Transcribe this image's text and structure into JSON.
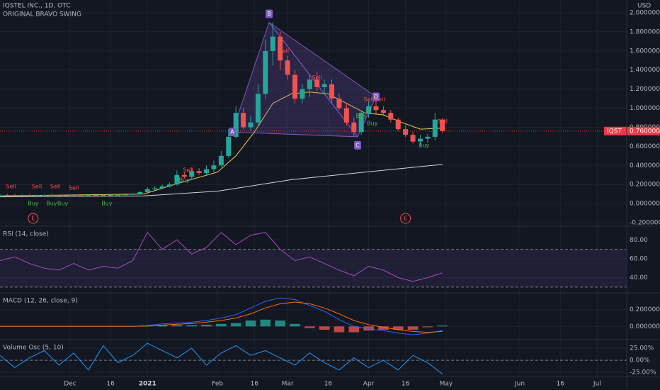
{
  "chart_data": [
    {
      "type": "candlestick",
      "title": "IQSTEL INC., 1D, OTC",
      "subtitle": "ORIGINAL BRAVO SWING",
      "currency": "USD",
      "x": [
        -19,
        -17,
        -15,
        -13,
        -11,
        -9,
        -7,
        -5,
        -3,
        -1,
        1,
        3,
        5,
        7,
        9,
        11,
        13,
        15,
        17,
        19,
        21,
        23,
        25,
        27,
        29,
        31,
        33,
        35,
        37,
        39,
        41,
        43,
        45,
        47,
        49,
        51,
        53,
        55,
        57,
        59,
        61,
        63,
        65,
        67,
        69,
        71,
        73,
        75,
        77,
        79,
        81,
        83,
        85,
        87,
        89,
        91,
        93,
        95,
        97,
        99,
        101
      ],
      "open": [
        0.08,
        0.085,
        0.09,
        0.085,
        0.09,
        0.085,
        0.088,
        0.09,
        0.085,
        0.088,
        0.085,
        0.09,
        0.085,
        0.088,
        0.09,
        0.088,
        0.09,
        0.092,
        0.095,
        0.1,
        0.12,
        0.15,
        0.16,
        0.18,
        0.2,
        0.3,
        0.28,
        0.34,
        0.32,
        0.36,
        0.4,
        0.5,
        0.7,
        0.95,
        0.8,
        0.85,
        1.15,
        1.6,
        1.75,
        1.5,
        1.35,
        1.1,
        1.2,
        1.3,
        1.22,
        1.25,
        1.1,
        1.0,
        0.85,
        0.75,
        0.95,
        1.02,
        0.98,
        0.95,
        0.88,
        0.78,
        0.72,
        0.65,
        0.68,
        0.7,
        0.88
      ],
      "high": [
        0.095,
        0.1,
        0.1,
        0.1,
        0.1,
        0.095,
        0.1,
        0.1,
        0.095,
        0.095,
        0.1,
        0.1,
        0.095,
        0.1,
        0.1,
        0.1,
        0.1,
        0.105,
        0.11,
        0.13,
        0.17,
        0.18,
        0.2,
        0.22,
        0.35,
        0.33,
        0.38,
        0.37,
        0.4,
        0.45,
        0.55,
        0.78,
        1.02,
        1.0,
        0.92,
        1.25,
        1.72,
        1.9,
        1.8,
        1.55,
        1.4,
        1.25,
        1.35,
        1.38,
        1.3,
        1.3,
        1.15,
        1.05,
        0.9,
        0.98,
        1.08,
        1.08,
        1.02,
        0.98,
        0.9,
        0.82,
        0.75,
        0.72,
        0.73,
        0.95,
        0.9
      ],
      "low": [
        0.075,
        0.08,
        0.08,
        0.08,
        0.08,
        0.08,
        0.08,
        0.08,
        0.08,
        0.08,
        0.08,
        0.08,
        0.08,
        0.08,
        0.085,
        0.085,
        0.085,
        0.088,
        0.09,
        0.095,
        0.115,
        0.14,
        0.15,
        0.17,
        0.19,
        0.26,
        0.26,
        0.3,
        0.3,
        0.33,
        0.38,
        0.48,
        0.68,
        0.78,
        0.76,
        0.82,
        1.1,
        1.45,
        1.4,
        1.3,
        1.05,
        1.05,
        1.12,
        1.18,
        1.15,
        1.05,
        0.98,
        0.82,
        0.7,
        0.72,
        0.9,
        0.94,
        0.92,
        0.85,
        0.76,
        0.7,
        0.63,
        0.6,
        0.64,
        0.66,
        0.74
      ],
      "close": [
        0.085,
        0.09,
        0.085,
        0.09,
        0.085,
        0.088,
        0.09,
        0.085,
        0.088,
        0.085,
        0.09,
        0.085,
        0.088,
        0.09,
        0.088,
        0.09,
        0.092,
        0.095,
        0.1,
        0.12,
        0.15,
        0.16,
        0.18,
        0.2,
        0.3,
        0.28,
        0.34,
        0.32,
        0.36,
        0.4,
        0.5,
        0.7,
        0.95,
        0.8,
        0.85,
        1.15,
        1.6,
        1.75,
        1.5,
        1.35,
        1.1,
        1.2,
        1.3,
        1.22,
        1.25,
        1.1,
        1.0,
        0.85,
        0.75,
        0.95,
        1.02,
        0.98,
        0.95,
        0.88,
        0.78,
        0.72,
        0.65,
        0.68,
        0.7,
        0.88,
        0.76
      ],
      "up_color": "#26a69a",
      "down_color": "#ef5350",
      "overlays": [
        {
          "color": "#d1d4dc",
          "x": [
            -19,
            20,
            40,
            60,
            80,
            101
          ],
          "values": [
            0.07,
            0.08,
            0.13,
            0.25,
            0.33,
            0.41
          ]
        },
        {
          "color": "#e8d44d",
          "x": [
            -19,
            20,
            30,
            40,
            45,
            50,
            55,
            60,
            65,
            70,
            75,
            80,
            85,
            90,
            95,
            101
          ],
          "values": [
            0.08,
            0.1,
            0.22,
            0.33,
            0.5,
            0.75,
            1.05,
            1.15,
            1.17,
            1.15,
            1.05,
            0.95,
            0.93,
            0.85,
            0.78,
            0.79
          ]
        }
      ],
      "pattern": [
        {
          "label": "A",
          "x": 44,
          "y": 0.75
        },
        {
          "label": "B",
          "x": 54,
          "y": 1.9
        },
        {
          "label": "C",
          "x": 78,
          "y": 0.7
        },
        {
          "label": "D",
          "x": 83,
          "y": 1.12
        }
      ],
      "signals": [
        {
          "text": "Sell",
          "x": -16,
          "y": 0.18
        },
        {
          "text": "Sell",
          "x": -9,
          "y": 0.18
        },
        {
          "text": "Sell",
          "x": -4,
          "y": 0.18
        },
        {
          "text": "Sell",
          "x": 1,
          "y": 0.165
        },
        {
          "text": "Sell",
          "x": 32,
          "y": 0.35
        },
        {
          "text": "Sell",
          "x": 58,
          "y": 1.6
        },
        {
          "text": "Sell",
          "x": 67,
          "y": 1.32
        },
        {
          "text": "Sell",
          "x": 81,
          "y": 1.09
        },
        {
          "text": "Sell",
          "x": 84,
          "y": 1.09
        },
        {
          "text": "Sell",
          "x": 101,
          "y": 0.86
        },
        {
          "text": "Buy",
          "x": -10,
          "y": 0
        },
        {
          "text": "Buy",
          "x": -5,
          "y": 0
        },
        {
          "text": "Buy",
          "x": -2,
          "y": 0
        },
        {
          "text": "Buy",
          "x": 10,
          "y": 0
        },
        {
          "text": "Buy",
          "x": 31,
          "y": 0.245
        },
        {
          "text": "Buy",
          "x": 79,
          "y": 0.92
        },
        {
          "text": "Buy",
          "x": 82,
          "y": 0.84
        },
        {
          "text": "Buy",
          "x": 96,
          "y": 0.61
        }
      ],
      "events": [
        {
          "label": "E",
          "x": -10
        },
        {
          "label": "E",
          "x": 91
        }
      ],
      "last_price": {
        "label": "IQST",
        "value": 0.76,
        "value_label": "0.760000",
        "color": "#f23645"
      },
      "xlim": [
        -19,
        151
      ],
      "ylim": [
        -0.23,
        2.134
      ],
      "yticks": [
        {
          "value": 2.0,
          "label": "2.000000"
        },
        {
          "value": 1.8,
          "label": "1.800000"
        },
        {
          "value": 1.6,
          "label": "1.600000"
        },
        {
          "value": 1.4,
          "label": "1.400000"
        },
        {
          "value": 1.2,
          "label": "1.200000"
        },
        {
          "value": 1.0,
          "label": "1.000000"
        },
        {
          "value": 0.8,
          "label": "0.800000"
        },
        {
          "value": 0.6,
          "label": "0.600000"
        },
        {
          "value": 0.4,
          "label": "0.400000"
        },
        {
          "value": 0.2,
          "label": "0.200000"
        },
        {
          "value": 0,
          "label": "0.000000"
        },
        {
          "value": -0.2,
          "label": "-0.200000"
        }
      ]
    },
    {
      "type": "line",
      "title": "RSI (14, close)",
      "x": [
        -19,
        -15,
        -11,
        -7,
        -3,
        1,
        5,
        9,
        13,
        17,
        21,
        25,
        29,
        33,
        37,
        41,
        45,
        49,
        53,
        57,
        61,
        65,
        69,
        73,
        77,
        81,
        85,
        89,
        93,
        97,
        101
      ],
      "series": [
        {
          "color": "#ab47bc",
          "values": [
            58,
            62,
            55,
            50,
            48,
            55,
            48,
            52,
            50,
            58,
            88,
            70,
            80,
            65,
            72,
            88,
            75,
            85,
            88,
            70,
            58,
            62,
            55,
            48,
            42,
            52,
            48,
            40,
            36,
            40,
            45
          ]
        }
      ],
      "bands": [
        70,
        30
      ],
      "xlim": [
        -19,
        151
      ],
      "ylim": [
        24.6,
        93.8
      ],
      "yticks": [
        {
          "value": 80,
          "label": "80.00"
        },
        {
          "value": 60,
          "label": "60.00"
        },
        {
          "value": 40,
          "label": "40.00"
        }
      ]
    },
    {
      "type": "macd",
      "title": "MACD (12, 26, close, 9)",
      "x": [
        -19,
        -15,
        -11,
        -7,
        -3,
        1,
        5,
        9,
        13,
        17,
        21,
        25,
        29,
        33,
        37,
        41,
        45,
        49,
        53,
        57,
        61,
        65,
        69,
        73,
        77,
        81,
        85,
        89,
        93,
        97,
        101
      ],
      "series": [
        {
          "color": "#2962ff",
          "values": [
            0,
            0,
            0,
            0,
            0,
            0,
            0,
            0,
            0,
            0,
            0.01,
            0.03,
            0.04,
            0.05,
            0.07,
            0.1,
            0.14,
            0.22,
            0.3,
            0.34,
            0.32,
            0.25,
            0.18,
            0.08,
            0,
            -0.03,
            -0.05,
            -0.08,
            -0.1,
            -0.08,
            -0.05
          ]
        },
        {
          "color": "#ff6d00",
          "values": [
            0,
            0,
            0,
            0,
            0,
            0,
            0,
            0,
            0,
            0,
            0.005,
            0.015,
            0.025,
            0.035,
            0.05,
            0.07,
            0.1,
            0.15,
            0.22,
            0.27,
            0.29,
            0.27,
            0.22,
            0.15,
            0.07,
            0.02,
            -0.01,
            -0.04,
            -0.06,
            -0.07,
            -0.06
          ]
        }
      ],
      "histogram": {
        "up_color": "#26a69a",
        "down_color": "#ef5350",
        "values": [
          0,
          0,
          0,
          0,
          0,
          0,
          0,
          0,
          0,
          0,
          0.005,
          0.015,
          0.015,
          0.015,
          0.02,
          0.03,
          0.04,
          0.07,
          0.08,
          0.07,
          0.03,
          -0.02,
          -0.04,
          -0.07,
          -0.07,
          -0.05,
          -0.04,
          -0.04,
          -0.04,
          -0.01,
          0.01
        ]
      },
      "xlim": [
        -19,
        151
      ],
      "ylim": [
        -0.15,
        0.392
      ],
      "yticks": [
        {
          "value": 0.2,
          "label": "0.200000"
        },
        {
          "value": 0,
          "label": "0.000000"
        }
      ]
    },
    {
      "type": "line",
      "title": "Volume Osc (5, 10)",
      "x": [
        -19,
        -15,
        -11,
        -7,
        -3,
        1,
        5,
        9,
        13,
        17,
        21,
        25,
        29,
        33,
        37,
        41,
        45,
        49,
        53,
        57,
        61,
        65,
        69,
        73,
        77,
        81,
        85,
        89,
        93,
        97,
        101
      ],
      "series": [
        {
          "color": "#2196f3",
          "values": [
            10,
            -15,
            5,
            20,
            -10,
            15,
            -20,
            30,
            -5,
            10,
            35,
            20,
            5,
            25,
            -10,
            15,
            30,
            10,
            20,
            5,
            -10,
            15,
            -5,
            -20,
            5,
            -15,
            0,
            -20,
            10,
            -5,
            -28
          ]
        }
      ],
      "bands": [
        0
      ],
      "xlim": [
        -19,
        151
      ],
      "ylim": [
        -32,
        41
      ],
      "yticks": [
        {
          "value": 25,
          "label": "25.00%"
        },
        {
          "value": 0,
          "label": "0.00%"
        },
        {
          "value": -25,
          "label": "-25.00%"
        }
      ],
      "xticks": [
        {
          "value": 0,
          "label": "Dec"
        },
        {
          "value": 11,
          "label": "16"
        },
        {
          "value": 21,
          "label": "2021"
        },
        {
          "value": 40,
          "label": "Feb"
        },
        {
          "value": 50,
          "label": "16"
        },
        {
          "value": 59,
          "label": "Mar"
        },
        {
          "value": 70,
          "label": "16"
        },
        {
          "value": 81,
          "label": "Apr"
        },
        {
          "value": 91,
          "label": "16"
        },
        {
          "value": 102,
          "label": "May"
        },
        {
          "value": 122,
          "label": "Jun"
        },
        {
          "value": 133,
          "label": "16"
        },
        {
          "value": 143,
          "label": "Jul"
        }
      ]
    }
  ]
}
